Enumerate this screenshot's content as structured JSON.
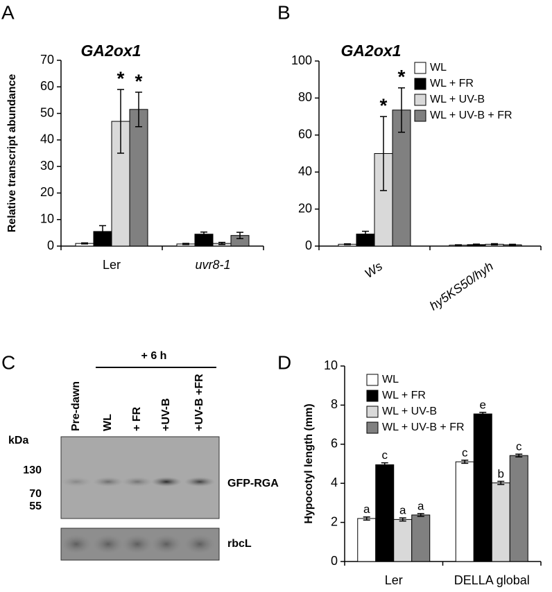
{
  "chart_data": [
    {
      "type": "bar",
      "panel": "A",
      "title": "GA2ox1",
      "ylabel": "Relative transcript abundance",
      "categories": [
        "Ler",
        "uvr8-1"
      ],
      "ylim": [
        0,
        70
      ],
      "yticks": [
        0,
        10,
        20,
        30,
        40,
        50,
        60,
        70
      ],
      "series": [
        {
          "color": "#ffffff",
          "values": [
            1,
            0.8
          ],
          "errors": [
            0.2,
            0.2
          ]
        },
        {
          "color": "#000000",
          "values": [
            5.5,
            4.5
          ],
          "errors": [
            2.2,
            0.8
          ]
        },
        {
          "color": "#d9d9d9",
          "values": [
            47,
            1
          ],
          "errors": [
            12,
            0.4
          ],
          "annotations": [
            "*",
            null
          ]
        },
        {
          "color": "#808080",
          "values": [
            51.5,
            4
          ],
          "errors": [
            6.5,
            1.2
          ],
          "annotations": [
            "*",
            null
          ]
        }
      ]
    },
    {
      "type": "bar",
      "panel": "B",
      "title": "GA2ox1",
      "legend": "upper right",
      "categories": [
        "Ws",
        "hy5KS50/hyh"
      ],
      "ylim": [
        0,
        100
      ],
      "yticks": [
        0,
        20,
        40,
        60,
        80,
        100
      ],
      "series": [
        {
          "name": "WL",
          "color": "#ffffff",
          "values": [
            1,
            0.5
          ],
          "errors": [
            0.2,
            0.2
          ]
        },
        {
          "name": "WL + FR",
          "color": "#000000",
          "values": [
            6.5,
            0.8
          ],
          "errors": [
            1.5,
            0.3
          ]
        },
        {
          "name": "WL + UV-B",
          "color": "#d9d9d9",
          "values": [
            50,
            1
          ],
          "errors": [
            20,
            0.3
          ],
          "annotations": [
            "*",
            null
          ]
        },
        {
          "name": "WL + UV-B + FR",
          "color": "#808080",
          "values": [
            73.5,
            0.7
          ],
          "errors": [
            12,
            0.3
          ],
          "annotations": [
            "*",
            null
          ]
        }
      ]
    },
    {
      "type": "bar",
      "panel": "D",
      "ylabel": "Hypocotyl length (mm)",
      "legend": "upper left",
      "categories": [
        "Ler",
        "DELLA global"
      ],
      "ylim": [
        0,
        10
      ],
      "yticks": [
        0,
        2,
        4,
        6,
        8,
        10
      ],
      "series": [
        {
          "name": "WL",
          "color": "#ffffff",
          "values": [
            2.2,
            5.1
          ],
          "errors": [
            0.08,
            0.08
          ],
          "annotations": [
            "a",
            "c"
          ]
        },
        {
          "name": "WL + FR",
          "color": "#000000",
          "values": [
            4.95,
            7.55
          ],
          "errors": [
            0.1,
            0.08
          ],
          "annotations": [
            "c",
            "e"
          ]
        },
        {
          "name": "WL + UV-B",
          "color": "#d9d9d9",
          "values": [
            2.15,
            4.02
          ],
          "errors": [
            0.08,
            0.08
          ],
          "annotations": [
            "a",
            "b"
          ]
        },
        {
          "name": "WL + UV-B + FR",
          "color": "#808080",
          "values": [
            2.38,
            5.42
          ],
          "errors": [
            0.07,
            0.07
          ],
          "annotations": [
            "a",
            "c"
          ]
        }
      ]
    }
  ],
  "blot": {
    "panel": "C",
    "treatment": "+ 6 h",
    "unit": "kDa",
    "lanes": [
      "Pre-dawn",
      "WL",
      "+ FR",
      "+UV-B",
      "+UV-B +FR"
    ],
    "markers": [
      130,
      70,
      55
    ],
    "bands": [
      "GFP-RGA",
      "rbcL"
    ]
  }
}
